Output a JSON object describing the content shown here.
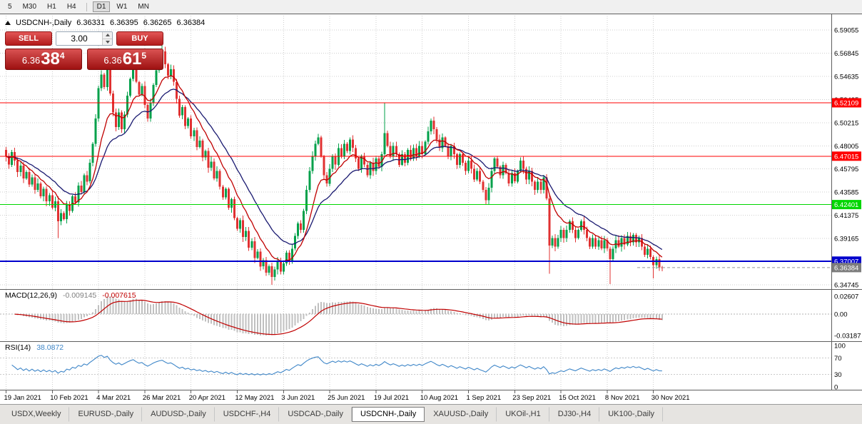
{
  "toolbar": {
    "timeframes": [
      {
        "label": "5",
        "active": false
      },
      {
        "label": "M30",
        "active": false
      },
      {
        "label": "H1",
        "active": false
      },
      {
        "label": "H4",
        "active": false
      },
      {
        "label": "D1",
        "active": true
      },
      {
        "label": "W1",
        "active": false
      },
      {
        "label": "MN",
        "active": false
      }
    ]
  },
  "symbol_header": {
    "title": "USDCNH-,Daily",
    "open": "6.36331",
    "high": "6.36395",
    "low": "6.36265",
    "close": "6.36384"
  },
  "trade_panel": {
    "sell_label": "SELL",
    "buy_label": "BUY",
    "lot_value": "3.00",
    "sell_price": {
      "prefix": "6.36",
      "big": "38",
      "sup": "4"
    },
    "buy_price": {
      "prefix": "6.36",
      "big": "61",
      "sup": "5"
    }
  },
  "tabs": [
    {
      "label": "USDX,Weekly",
      "active": false
    },
    {
      "label": "EURUSD-,Daily",
      "active": false
    },
    {
      "label": "AUDUSD-,Daily",
      "active": false
    },
    {
      "label": "USDCHF-,H4",
      "active": false
    },
    {
      "label": "USDCAD-,Daily",
      "active": false
    },
    {
      "label": "USDCNH-,Daily",
      "active": true
    },
    {
      "label": "XAUUSD-,Daily",
      "active": false
    },
    {
      "label": "UKOil-,H1",
      "active": false
    },
    {
      "label": "DJ30-,H4",
      "active": false
    },
    {
      "label": "UK100-,Daily",
      "active": false
    }
  ],
  "chart_data": {
    "type": "candlestick",
    "title": "USDCNH-,Daily",
    "y_axis_labels": [
      "6.59055",
      "6.56845",
      "6.54635",
      "6.52425",
      "6.50215",
      "6.48005",
      "6.45795",
      "6.43585",
      "6.41375",
      "6.39165",
      "6.36955",
      "6.34745"
    ],
    "x_axis_labels": [
      "19 Jan 2021",
      "10 Feb 2021",
      "4 Mar 2021",
      "26 Mar 2021",
      "20 Apr 2021",
      "12 May 2021",
      "3 Jun 2021",
      "25 Jun 2021",
      "19 Jul 2021",
      "10 Aug 2021",
      "1 Sep 2021",
      "23 Sep 2021",
      "15 Oct 2021",
      "8 Nov 2021",
      "30 Nov 2021"
    ],
    "levels": [
      {
        "value": 6.52109,
        "label": "6.52109",
        "color": "#ff0000",
        "line_width": 1
      },
      {
        "value": 6.47015,
        "label": "6.47015",
        "color": "#ff0000",
        "line_width": 1
      },
      {
        "value": 6.42401,
        "label": "6.42401",
        "color": "#00d600",
        "line_width": 1
      },
      {
        "value": 6.37007,
        "label": "6.37007",
        "color": "#0000cd",
        "line_width": 2
      }
    ],
    "current_price": {
      "value": 6.36384,
      "label": "6.36384",
      "color": "#7d7d7d"
    },
    "candles": {
      "up_color": "#00a04a",
      "down_color": "#e03131",
      "first_open": 6.476,
      "closes": [
        6.47,
        6.462,
        6.474,
        6.466,
        6.455,
        6.461,
        6.449,
        6.455,
        6.443,
        6.45,
        6.438,
        6.444,
        6.432,
        6.439,
        6.427,
        6.433,
        6.421,
        6.427,
        6.408,
        6.416,
        6.41,
        6.424,
        6.418,
        6.432,
        6.426,
        6.442,
        6.436,
        6.452,
        6.446,
        6.464,
        6.482,
        6.506,
        6.535,
        6.548,
        6.536,
        6.554,
        6.53,
        6.512,
        6.498,
        6.512,
        6.496,
        6.51,
        6.528,
        6.544,
        6.556,
        6.541,
        6.529,
        6.537,
        6.519,
        6.506,
        6.521,
        6.538,
        6.552,
        6.563,
        6.57,
        6.558,
        6.547,
        6.553,
        6.541,
        6.525,
        6.509,
        6.517,
        6.499,
        6.506,
        6.489,
        6.495,
        6.479,
        6.485,
        6.469,
        6.475,
        6.459,
        6.465,
        6.449,
        6.456,
        6.441,
        6.431,
        6.439,
        6.421,
        6.429,
        6.411,
        6.401,
        6.409,
        6.393,
        6.399,
        6.383,
        6.389,
        6.373,
        6.379,
        6.365,
        6.371,
        6.359,
        6.365,
        6.355,
        6.362,
        6.37,
        6.36,
        6.368,
        6.378,
        6.37,
        6.382,
        6.394,
        6.406,
        6.4,
        6.418,
        6.438,
        6.456,
        6.47,
        6.482,
        6.488,
        6.47,
        6.452,
        6.444,
        6.458,
        6.47,
        6.462,
        6.478,
        6.47,
        6.482,
        6.475,
        6.486,
        6.478,
        6.468,
        6.458,
        6.47,
        6.462,
        6.452,
        6.464,
        6.456,
        6.468,
        6.46,
        6.472,
        6.492,
        6.48,
        6.47,
        6.48,
        6.472,
        6.462,
        6.472,
        6.464,
        6.476,
        6.468,
        6.478,
        6.47,
        6.48,
        6.472,
        6.484,
        6.494,
        6.504,
        6.496,
        6.486,
        6.478,
        6.488,
        6.48,
        6.47,
        6.48,
        6.472,
        6.462,
        6.472,
        6.464,
        6.456,
        6.466,
        6.458,
        6.448,
        6.456,
        6.446,
        6.438,
        6.428,
        6.44,
        6.456,
        6.468,
        6.46,
        6.452,
        6.462,
        6.454,
        6.444,
        6.454,
        6.446,
        6.456,
        6.466,
        6.458,
        6.448,
        6.456,
        6.446,
        6.438,
        6.446,
        6.438,
        6.45,
        6.43,
        6.385,
        6.392,
        6.384,
        6.392,
        6.4,
        6.392,
        6.4,
        6.408,
        6.4,
        6.392,
        6.4,
        6.408,
        6.4,
        6.392,
        6.384,
        6.392,
        6.384,
        6.39,
        6.382,
        6.39,
        6.382,
        6.372,
        6.382,
        6.39,
        6.384,
        6.392,
        6.386,
        6.394,
        6.388,
        6.395,
        6.388,
        6.392,
        6.384,
        6.376,
        6.382,
        6.374,
        6.366,
        6.372,
        6.364,
        6.3638
      ],
      "wick_overrides": {
        "18": [
          null,
          6.392
        ],
        "35": [
          6.568,
          null
        ],
        "44": [
          6.565,
          null
        ],
        "54": [
          6.576,
          null
        ],
        "92": [
          null,
          6.3475
        ],
        "131": [
          6.5211,
          null
        ],
        "188": [
          null,
          6.358
        ],
        "209": [
          null,
          6.348
        ],
        "224": [
          null,
          6.3535
        ]
      }
    },
    "moving_averages": [
      {
        "period": 10,
        "color": "#c00000"
      },
      {
        "period": 21,
        "color": "#191970"
      }
    ],
    "macd": {
      "label": "MACD(12,26,9)",
      "fast": 12,
      "slow": 26,
      "signal": 9,
      "value_main": "-0.009145",
      "value_signal": "-0.007615",
      "axis_max_label": "0.02607",
      "axis_zero_label": "0.00",
      "axis_min_label": "-0.03187",
      "histogram_color": "#c0c0c0",
      "signal_color": "#c00000"
    },
    "rsi": {
      "label": "RSI(14)",
      "period": 14,
      "value": "38.0872",
      "axis_labels": [
        "100",
        "70",
        "30",
        "0"
      ],
      "level_lines": [
        70,
        30
      ],
      "color": "#3e86c8"
    }
  }
}
